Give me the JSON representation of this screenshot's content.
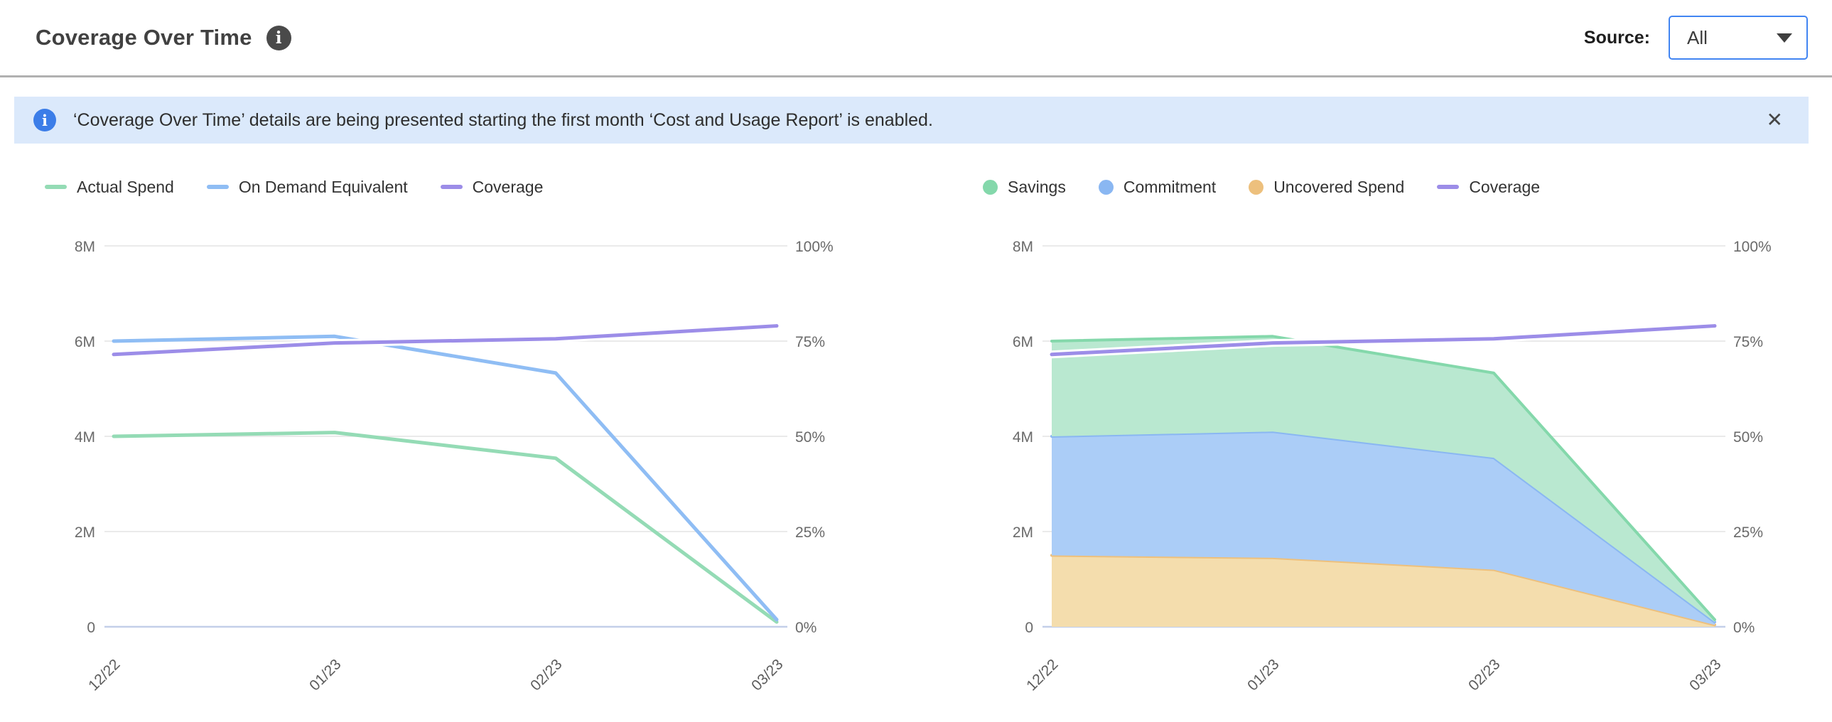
{
  "header": {
    "title": "Coverage Over Time",
    "source_label": "Source:",
    "source_value": "All"
  },
  "icons": {
    "info": "i",
    "close": "✕"
  },
  "banner": {
    "text": "‘Coverage Over Time’ details are being presented starting the first month ‘Cost and Usage Report’ is enabled."
  },
  "colors": {
    "accent_blue": "#4285f2",
    "banner_bg": "#dbe9fb",
    "banner_icon": "#3b7de8",
    "grid": "#e4e4e4",
    "baseline": "#c3cfe9",
    "actual_spend": "#94dbb5",
    "on_demand_equivalent": "#8fbdf4",
    "coverage": "#9c8de8",
    "savings_fill": "#b9e8d0",
    "commitment_fill": "#abcdf7",
    "uncovered_fill": "#f4ddad"
  },
  "chart_data": [
    {
      "name": "spend-and-coverage-lines",
      "type": "line",
      "x": [
        "12/22",
        "01/23",
        "02/23",
        "03/23"
      ],
      "left_axis": {
        "ticks": [
          "8M",
          "6M",
          "4M",
          "2M",
          "0"
        ],
        "max_m": 8,
        "min_m": 0
      },
      "right_axis": {
        "ticks": [
          "100%",
          "75%",
          "50%",
          "25%",
          "0%"
        ],
        "max": 100,
        "min": 0
      },
      "grid": true,
      "legend_position": "top-left",
      "series": [
        {
          "name": "Actual Spend",
          "type": "line",
          "axis": "left",
          "marker": "dash",
          "color": "#94dbb5",
          "values_m": [
            4.0,
            4.08,
            3.54,
            0.1
          ]
        },
        {
          "name": "On Demand Equivalent",
          "type": "line",
          "axis": "left",
          "marker": "dash",
          "color": "#8fbdf4",
          "values_m": [
            6.0,
            6.1,
            5.33,
            0.15
          ]
        },
        {
          "name": "Coverage",
          "type": "line",
          "axis": "right",
          "marker": "dash",
          "color": "#9c8de8",
          "halo": true,
          "values_pct": [
            71.5,
            74.5,
            75.6,
            79.0
          ]
        }
      ]
    },
    {
      "name": "coverage-stacked-area",
      "type": "area",
      "x": [
        "12/22",
        "01/23",
        "02/23",
        "03/23"
      ],
      "left_axis": {
        "ticks": [
          "8M",
          "6M",
          "4M",
          "2M",
          "0"
        ],
        "max_m": 8,
        "min_m": 0
      },
      "right_axis": {
        "ticks": [
          "100%",
          "75%",
          "50%",
          "25%",
          "0%"
        ],
        "max": 100,
        "min": 0
      },
      "grid": true,
      "legend_position": "top-left",
      "series": [
        {
          "name": "Savings",
          "type": "area",
          "axis": "left",
          "marker": "circle",
          "color": "#84d8ab",
          "fill": "#b9e8d0",
          "values_m": [
            2.0,
            2.0,
            1.78,
            0.05
          ]
        },
        {
          "name": "Commitment",
          "type": "area",
          "axis": "left",
          "marker": "circle",
          "color": "#8ab7f2",
          "fill": "#abcdf7",
          "values_m": [
            2.5,
            2.65,
            2.35,
            0.06
          ]
        },
        {
          "name": "Uncovered Spend",
          "type": "area",
          "axis": "left",
          "marker": "circle",
          "color": "#edc07d",
          "fill": "#f4ddad",
          "values_m": [
            1.5,
            1.45,
            1.2,
            0.04
          ]
        },
        {
          "name": "Coverage",
          "type": "line",
          "axis": "right",
          "marker": "dash",
          "color": "#9c8de8",
          "halo": true,
          "values_pct": [
            71.5,
            74.5,
            75.6,
            79.0
          ]
        }
      ]
    }
  ]
}
